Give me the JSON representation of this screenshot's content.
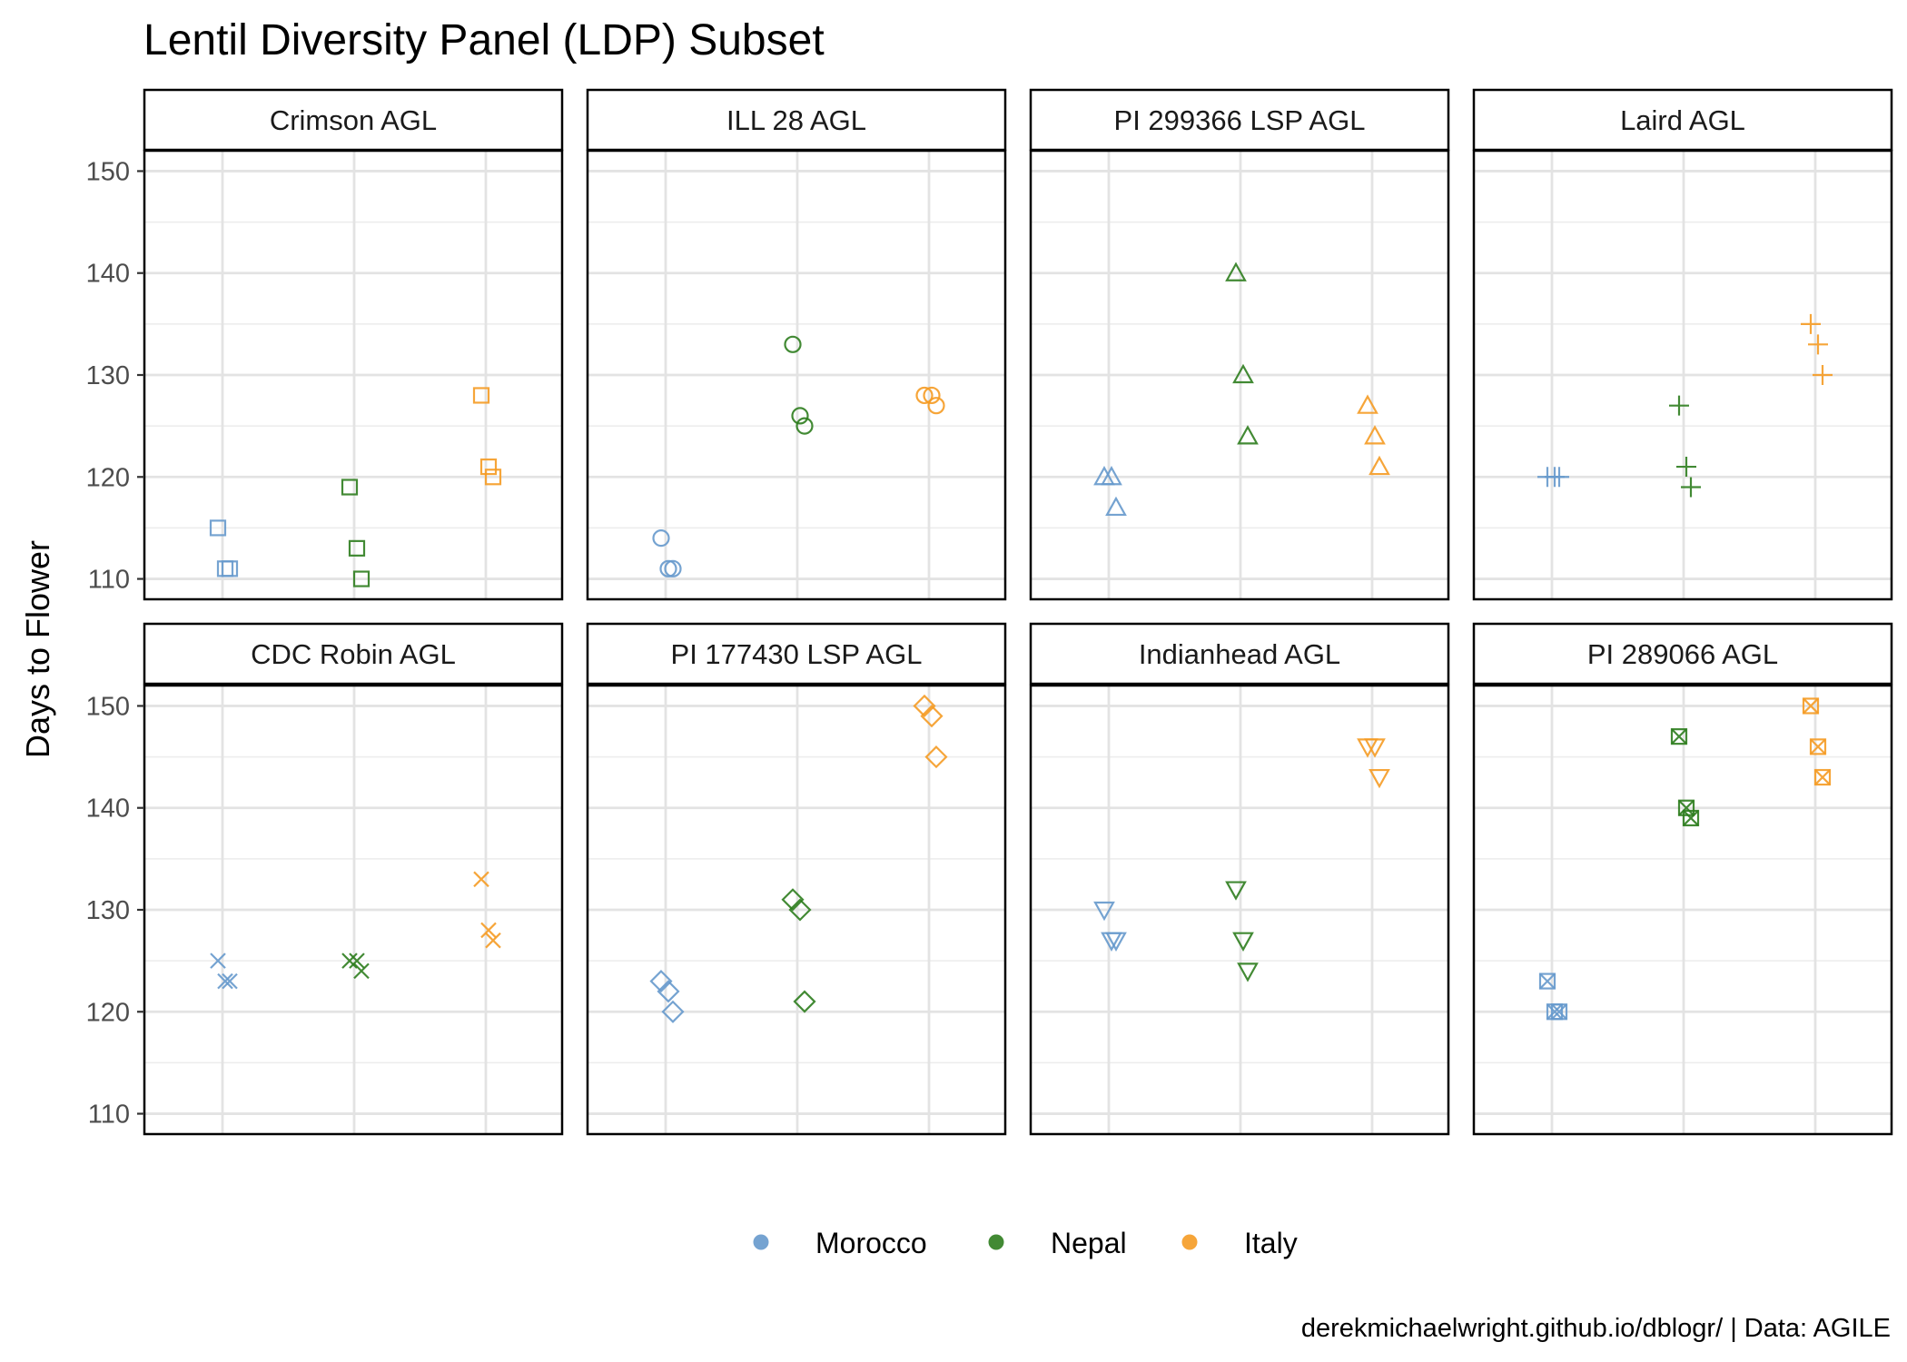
{
  "chart_data": {
    "type": "scatter",
    "title": "Lentil Diversity Panel (LDP) Subset",
    "ylabel": "Days to Flower",
    "xlabel": "",
    "caption": "derekmichaelwright.github.io/dblogr/ | Data: AGILE",
    "ylim": [
      108,
      152
    ],
    "yticks": [
      110,
      120,
      130,
      140,
      150
    ],
    "grid": true,
    "legend_position": "bottom",
    "legend": [
      {
        "name": "Morocco",
        "color": "#6699CC"
      },
      {
        "name": "Nepal",
        "color": "#2E7D1E"
      },
      {
        "name": "Italy",
        "color": "#F59B23"
      }
    ],
    "locations": [
      "Morocco",
      "Nepal",
      "Italy"
    ],
    "panels": [
      {
        "name": "Crimson AGL",
        "shape": "square",
        "values": [
          [
            115,
            111,
            111
          ],
          [
            119,
            113,
            110
          ],
          [
            128,
            121,
            120
          ]
        ]
      },
      {
        "name": "ILL 28 AGL",
        "shape": "circle",
        "values": [
          [
            114,
            111,
            111
          ],
          [
            133,
            126,
            125
          ],
          [
            128,
            128,
            127
          ]
        ]
      },
      {
        "name": "PI 299366 LSP AGL",
        "shape": "triangle",
        "values": [
          [
            120,
            120,
            117
          ],
          [
            140,
            130,
            124
          ],
          [
            127,
            124,
            121
          ]
        ]
      },
      {
        "name": "Laird AGL",
        "shape": "plus",
        "values": [
          [
            120,
            120,
            120
          ],
          [
            127,
            121,
            119
          ],
          [
            135,
            133,
            130
          ]
        ]
      },
      {
        "name": "CDC Robin AGL",
        "shape": "cross",
        "values": [
          [
            125,
            123,
            123
          ],
          [
            125,
            125,
            124
          ],
          [
            133,
            128,
            127
          ]
        ]
      },
      {
        "name": "PI 177430 LSP AGL",
        "shape": "diamond",
        "values": [
          [
            123,
            122,
            120
          ],
          [
            131,
            130,
            121
          ],
          [
            150,
            149,
            145
          ]
        ]
      },
      {
        "name": "Indianhead AGL",
        "shape": "triangle-down",
        "values": [
          [
            130,
            127,
            127
          ],
          [
            132,
            127,
            124
          ],
          [
            146,
            146,
            143
          ]
        ]
      },
      {
        "name": "PI 289066 AGL",
        "shape": "square-cross",
        "values": [
          [
            123,
            120,
            120
          ],
          [
            147,
            140,
            139
          ],
          [
            150,
            146,
            143
          ]
        ]
      }
    ]
  }
}
